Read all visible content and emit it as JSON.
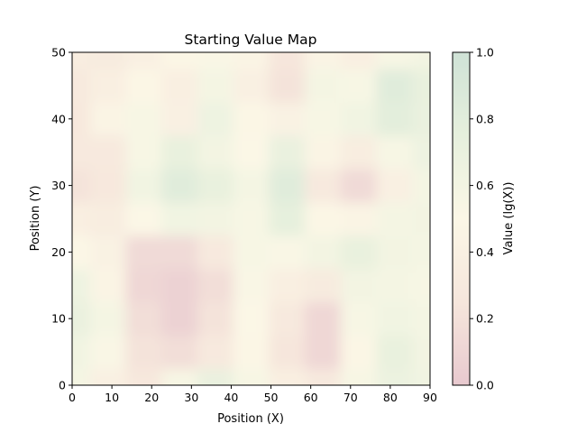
{
  "chart_data": {
    "type": "heatmap",
    "title": "Starting Value Map",
    "xlabel": "Position (X)",
    "ylabel": "Position (Y)",
    "xlim": [
      0,
      90
    ],
    "ylim": [
      0,
      50
    ],
    "x_ticks": [
      "0",
      "10",
      "20",
      "30",
      "40",
      "50",
      "60",
      "70",
      "80",
      "90"
    ],
    "y_ticks": [
      "0",
      "10",
      "20",
      "30",
      "40",
      "50"
    ],
    "colorbar": {
      "label": "Value (lg(X))",
      "range": [
        0.0,
        1.0
      ],
      "ticks": [
        "0.0",
        "0.2",
        "0.4",
        "0.6",
        "0.8",
        "1.0"
      ],
      "colors": {
        "low": "#e8c9cf",
        "mid_low": "#f6e6dc",
        "mid": "#fbf7e6",
        "mid_high": "#e6f0dd",
        "high": "#cfe2d6"
      }
    },
    "grid": false,
    "x_values": [
      0,
      9,
      18,
      27,
      36,
      45,
      54,
      63,
      72,
      81,
      90
    ],
    "y_values": [
      0,
      5,
      10,
      15,
      20,
      25,
      30,
      35,
      40,
      45,
      50
    ],
    "z_values": [
      [
        0.58,
        0.4,
        0.28,
        0.55,
        0.7,
        0.55,
        0.38,
        0.3,
        0.55,
        0.68,
        0.62
      ],
      [
        0.62,
        0.52,
        0.22,
        0.18,
        0.3,
        0.48,
        0.25,
        0.12,
        0.48,
        0.72,
        0.6
      ],
      [
        0.7,
        0.58,
        0.18,
        0.08,
        0.22,
        0.5,
        0.3,
        0.12,
        0.55,
        0.62,
        0.58
      ],
      [
        0.65,
        0.45,
        0.12,
        0.08,
        0.18,
        0.52,
        0.38,
        0.32,
        0.6,
        0.58,
        0.55
      ],
      [
        0.5,
        0.42,
        0.15,
        0.15,
        0.3,
        0.55,
        0.52,
        0.6,
        0.72,
        0.6,
        0.58
      ],
      [
        0.38,
        0.35,
        0.5,
        0.62,
        0.6,
        0.55,
        0.75,
        0.48,
        0.45,
        0.58,
        0.6
      ],
      [
        0.22,
        0.28,
        0.62,
        0.82,
        0.72,
        0.58,
        0.82,
        0.3,
        0.15,
        0.4,
        0.58
      ],
      [
        0.3,
        0.3,
        0.55,
        0.72,
        0.6,
        0.5,
        0.7,
        0.45,
        0.35,
        0.55,
        0.65
      ],
      [
        0.28,
        0.45,
        0.55,
        0.4,
        0.65,
        0.48,
        0.42,
        0.55,
        0.62,
        0.78,
        0.7
      ],
      [
        0.3,
        0.38,
        0.48,
        0.38,
        0.58,
        0.4,
        0.22,
        0.58,
        0.55,
        0.82,
        0.72
      ],
      [
        0.35,
        0.32,
        0.4,
        0.48,
        0.52,
        0.45,
        0.25,
        0.45,
        0.38,
        0.55,
        0.6
      ]
    ]
  }
}
